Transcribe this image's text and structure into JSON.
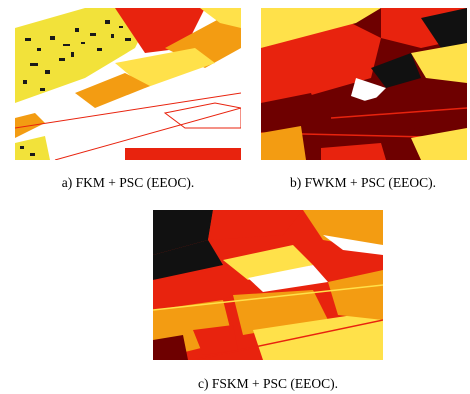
{
  "figures": [
    {
      "id": "a",
      "caption": "a) FKM + PSC (EEOC)."
    },
    {
      "id": "b",
      "caption": "b) FWKM + PSC (EEOC)."
    },
    {
      "id": "c",
      "caption": "c) FSKM + PSC (EEOC)."
    }
  ],
  "colors": {
    "dark_red": "#6e0000",
    "red": "#e8230e",
    "orange": "#f39c12",
    "yellow": "#ffe14a",
    "black": "#111111",
    "white": "#ffffff"
  }
}
